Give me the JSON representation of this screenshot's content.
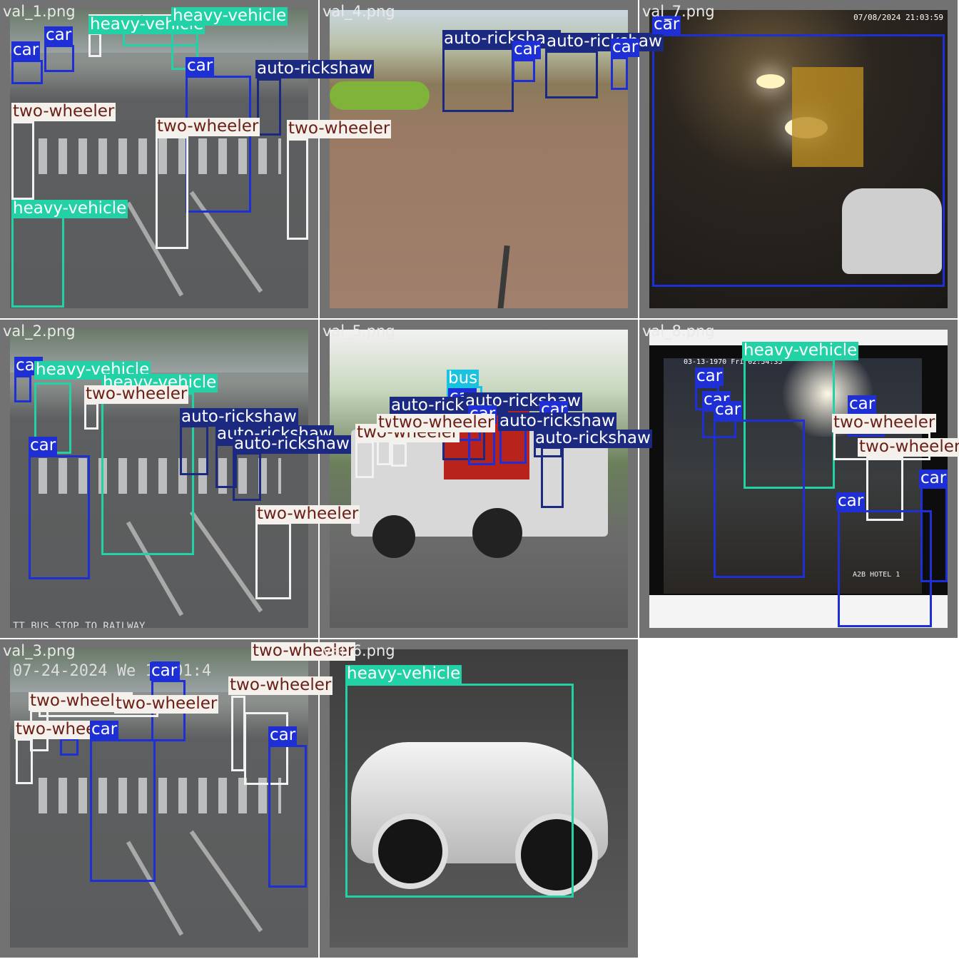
{
  "classes": {
    "car": {
      "label": "car",
      "box": "#1f2fd6",
      "tag_bg": "#1f2fd6",
      "tag_fg": "#ffffff"
    },
    "bus": {
      "label": "bus",
      "box": "#19c3e0",
      "tag_bg": "#19c3e0",
      "tag_fg": "#ffffff"
    },
    "auto-rickshaw": {
      "label": "auto-rickshaw",
      "box": "#1b2a80",
      "tag_bg": "#1b2a80",
      "tag_fg": "#ffffff"
    },
    "heavy-vehicle": {
      "label": "heavy-vehicle",
      "box": "#22d1a6",
      "tag_bg": "#22d1a6",
      "tag_fg": "#ffffff"
    },
    "two-wheeler": {
      "label": "two-wheeler",
      "box": "#f2f2f2",
      "tag_bg": "#f4f0ec",
      "tag_fg": "#6b1e14"
    }
  },
  "tiles": [
    {
      "file": "val_1.png",
      "scene": "street",
      "detections": [
        {
          "cls": "car"
        },
        {
          "cls": "car"
        },
        {
          "cls": "two-wheeler"
        },
        {
          "cls": "heavy-vehicle"
        },
        {
          "cls": "heavy-vehicle"
        },
        {
          "cls": "car"
        },
        {
          "cls": "auto-rickshaw"
        },
        {
          "cls": "two-wheeler"
        },
        {
          "cls": "two-wheeler"
        },
        {
          "cls": "two-wheeler"
        },
        {
          "cls": "heavy-vehicle"
        }
      ]
    },
    {
      "file": "val_4.png",
      "scene": "dirt",
      "detections": [
        {
          "cls": "auto-rickshaw"
        },
        {
          "cls": "car"
        },
        {
          "cls": "auto-rickshaw"
        },
        {
          "cls": "car"
        }
      ]
    },
    {
      "file": "val_7.png",
      "scene": "night",
      "overlay_text": "07/08/2024 21:03:59",
      "detections": [
        {
          "cls": "car"
        }
      ]
    },
    {
      "file": "val_2.png",
      "scene": "street",
      "overlay_text": "TT BUS STOP TO RAILWAY",
      "detections": [
        {
          "cls": "car"
        },
        {
          "cls": "heavy-vehicle"
        },
        {
          "cls": "heavy-vehicle"
        },
        {
          "cls": "two-wheeler"
        },
        {
          "cls": "auto-rickshaw"
        },
        {
          "cls": "auto-rickshaw"
        },
        {
          "cls": "auto-rickshaw"
        },
        {
          "cls": "car"
        },
        {
          "cls": "two-wheeler"
        }
      ]
    },
    {
      "file": "val_5.png",
      "scene": "truck",
      "detections": [
        {
          "cls": "bus"
        },
        {
          "cls": "car"
        },
        {
          "cls": "auto-rickshaw"
        },
        {
          "cls": "auto-rickshaw"
        },
        {
          "cls": "car"
        },
        {
          "cls": "car"
        },
        {
          "cls": "auto-rickshaw"
        },
        {
          "cls": "auto-rickshaw"
        },
        {
          "cls": "two-wheeler"
        },
        {
          "cls": "two-wheeler"
        },
        {
          "cls": "two-wheeler"
        }
      ]
    },
    {
      "file": "val_8.png",
      "scene": "player",
      "overlay_text": "03-13-1970 Fri 02:54:35",
      "overlay_text_2": "A2B HOTEL 1",
      "detections": [
        {
          "cls": "heavy-vehicle"
        },
        {
          "cls": "car"
        },
        {
          "cls": "car"
        },
        {
          "cls": "car"
        },
        {
          "cls": "car"
        },
        {
          "cls": "two-wheeler"
        },
        {
          "cls": "two-wheeler"
        },
        {
          "cls": "car"
        },
        {
          "cls": "car"
        }
      ]
    },
    {
      "file": "val_3.png",
      "scene": "street",
      "overlay_text": "07-24-2024 We 11:01:4",
      "detections": [
        {
          "cls": "car"
        },
        {
          "cls": "two-wheeler"
        },
        {
          "cls": "two-wheeler"
        },
        {
          "cls": "two-wheeler"
        },
        {
          "cls": "car"
        },
        {
          "cls": "two-wheeler"
        },
        {
          "cls": "two-wheeler"
        },
        {
          "cls": "car"
        },
        {
          "cls": "car"
        }
      ]
    },
    {
      "file": "val_6.png",
      "scene": "studio",
      "detections": [
        {
          "cls": "heavy-vehicle"
        }
      ]
    }
  ]
}
